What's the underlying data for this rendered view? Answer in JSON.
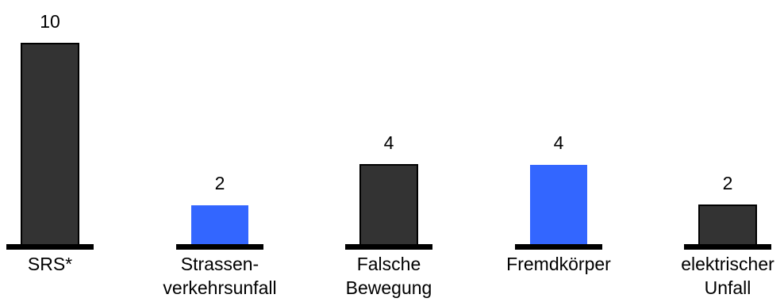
{
  "chart_data": {
    "type": "bar",
    "title": "",
    "xlabel": "",
    "ylabel": "",
    "ylim": [
      0,
      10
    ],
    "grid": false,
    "categories": [
      [
        "SRS*"
      ],
      [
        "Strassen-",
        "verkehrsunfall"
      ],
      [
        "Falsche",
        "Bewegung"
      ],
      [
        "Fremdkörper"
      ],
      [
        "elektrischer",
        "Unfall"
      ]
    ],
    "values": [
      10,
      2,
      4,
      4,
      2
    ],
    "value_labels": [
      "10",
      "2",
      "4",
      "4",
      "2"
    ],
    "bar_colors": [
      "#333333",
      "#3366ff",
      "#333333",
      "#3366ff",
      "#333333"
    ],
    "colors": {
      "dark": "#333333",
      "blue": "#3366ff",
      "baseline": "#000000"
    }
  }
}
